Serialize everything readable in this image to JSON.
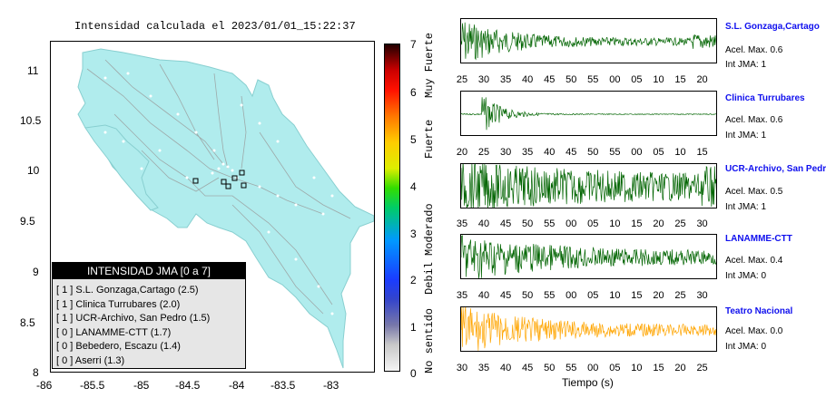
{
  "map": {
    "title": "Intensidad calculada el 2023/01/01_15:22:37",
    "y_ticks": [
      "11",
      "10.5",
      "10",
      "9.5",
      "9",
      "8.5",
      "8"
    ],
    "x_ticks": [
      "-86",
      "-85.5",
      "-85",
      "-84.5",
      "-84",
      "-83.5",
      "-83"
    ]
  },
  "colorbar": {
    "ticks": [
      "7",
      "6",
      "5",
      "4",
      "3",
      "2",
      "1",
      "0"
    ],
    "words": [
      "Muy Fuerte",
      "Fuerte",
      "Moderado",
      "Debil",
      "No sentido"
    ]
  },
  "legend": {
    "title": "INTENSIDAD JMA [0 a 7]",
    "items": [
      "[ 1 ]  S.L. Gonzaga,Cartago (2.5)",
      "[ 1 ]  Clinica Turrubares (2.0)",
      "[ 1 ]  UCR-Archivo, San Pedro (1.5)",
      "[ 0 ]  LANAMME-CTT (1.7)",
      "[ 0 ]  Bebedero, Escazu (1.4)",
      "[ 0 ]  Aserri (1.3)"
    ]
  },
  "stations": [
    {
      "name": "S.L. Gonzaga,Cartago",
      "acel": "Acel. Max. 0.6",
      "jma": "Int JMA: 1",
      "color": "#006400",
      "ticks": [
        "25",
        "30",
        "35",
        "40",
        "45",
        "50",
        "55",
        "00",
        "05",
        "10",
        "15",
        "20"
      ]
    },
    {
      "name": "Clinica Turrubares",
      "acel": "Acel. Max. 0.6",
      "jma": "Int JMA: 1",
      "color": "#006400",
      "ticks": [
        "20",
        "25",
        "30",
        "35",
        "40",
        "45",
        "50",
        "55",
        "00",
        "05",
        "10",
        "15"
      ]
    },
    {
      "name": "UCR-Archivo, San Pedro",
      "acel": "Acel. Max. 0.5",
      "jma": "Int JMA: 1",
      "color": "#006400",
      "ticks": [
        "35",
        "40",
        "45",
        "50",
        "55",
        "00",
        "05",
        "10",
        "15",
        "20",
        "25",
        "30"
      ]
    },
    {
      "name": "LANAMME-CTT",
      "acel": "Acel. Max. 0.4",
      "jma": "Int JMA: 0",
      "color": "#006400",
      "ticks": [
        "35",
        "40",
        "45",
        "50",
        "55",
        "00",
        "05",
        "10",
        "15",
        "20",
        "25",
        "30"
      ]
    },
    {
      "name": "Teatro Nacional",
      "acel": "Acel. Max. 0.0",
      "jma": "Int JMA: 0",
      "color": "#ffa500",
      "ticks": [
        "30",
        "35",
        "40",
        "45",
        "50",
        "55",
        "00",
        "05",
        "10",
        "15",
        "20",
        "25"
      ]
    }
  ],
  "waveform_xlabel": "Tiempo (s)",
  "colors": {
    "land": "#b0eced",
    "marker": "#000000",
    "roads": "#999999",
    "station_name": "#1010ee"
  }
}
